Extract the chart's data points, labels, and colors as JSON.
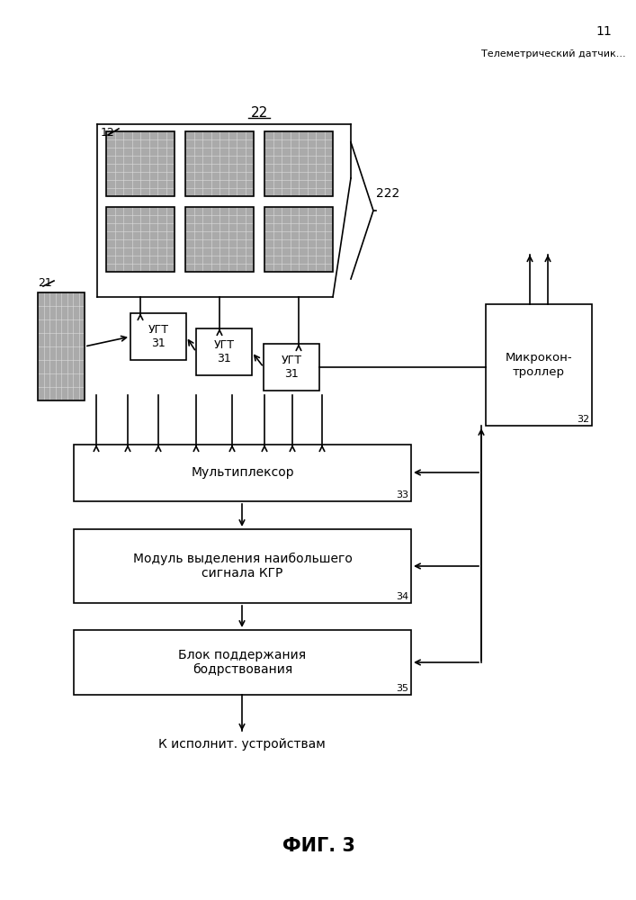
{
  "page_number": "11",
  "header_text": "Телеметрический датчик...",
  "figure_label": "ФИГ. 3",
  "label_22": "22",
  "label_12": "12",
  "label_21": "21",
  "label_222": "222",
  "label_32": "32",
  "label_33": "33",
  "label_34": "34",
  "label_35": "35",
  "ugt_text": "УГТ\n31",
  "box33_text": "Мультиплексор",
  "box34_text": "Модуль выделения наибольшего\nсигнала КГР",
  "box35_text": "Блок поддержания\nбодрствования",
  "micro_text": "Микрокон-\nтроллер",
  "output_text": "К исполнит. устройствам",
  "bg_color": "#ffffff",
  "lw": 1.2
}
